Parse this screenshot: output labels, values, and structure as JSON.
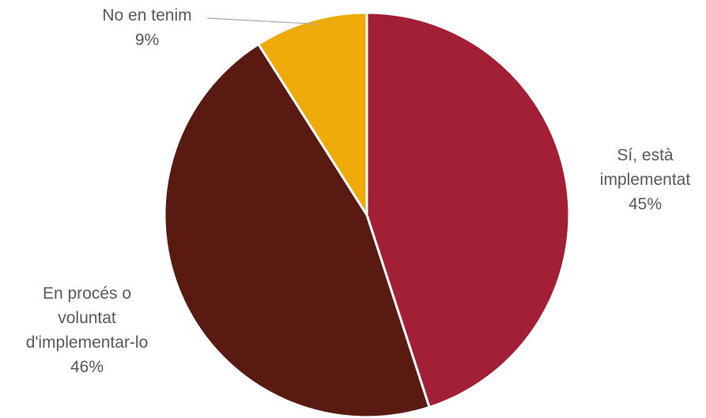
{
  "chart_data": {
    "type": "pie",
    "title": "",
    "slices": [
      {
        "label": [
          "Sí, està",
          "implementat"
        ],
        "percent_label": "45%",
        "value": 45,
        "color": "#A21F36"
      },
      {
        "label": [
          "En procés  o",
          "voluntat",
          "d'implementar-lo"
        ],
        "percent_label": "46%",
        "value": 46,
        "color": "#591A11"
      },
      {
        "label": [
          "No en tenim"
        ],
        "percent_label": "9%",
        "value": 9,
        "color": "#EEAA08"
      }
    ],
    "legend": "none"
  }
}
